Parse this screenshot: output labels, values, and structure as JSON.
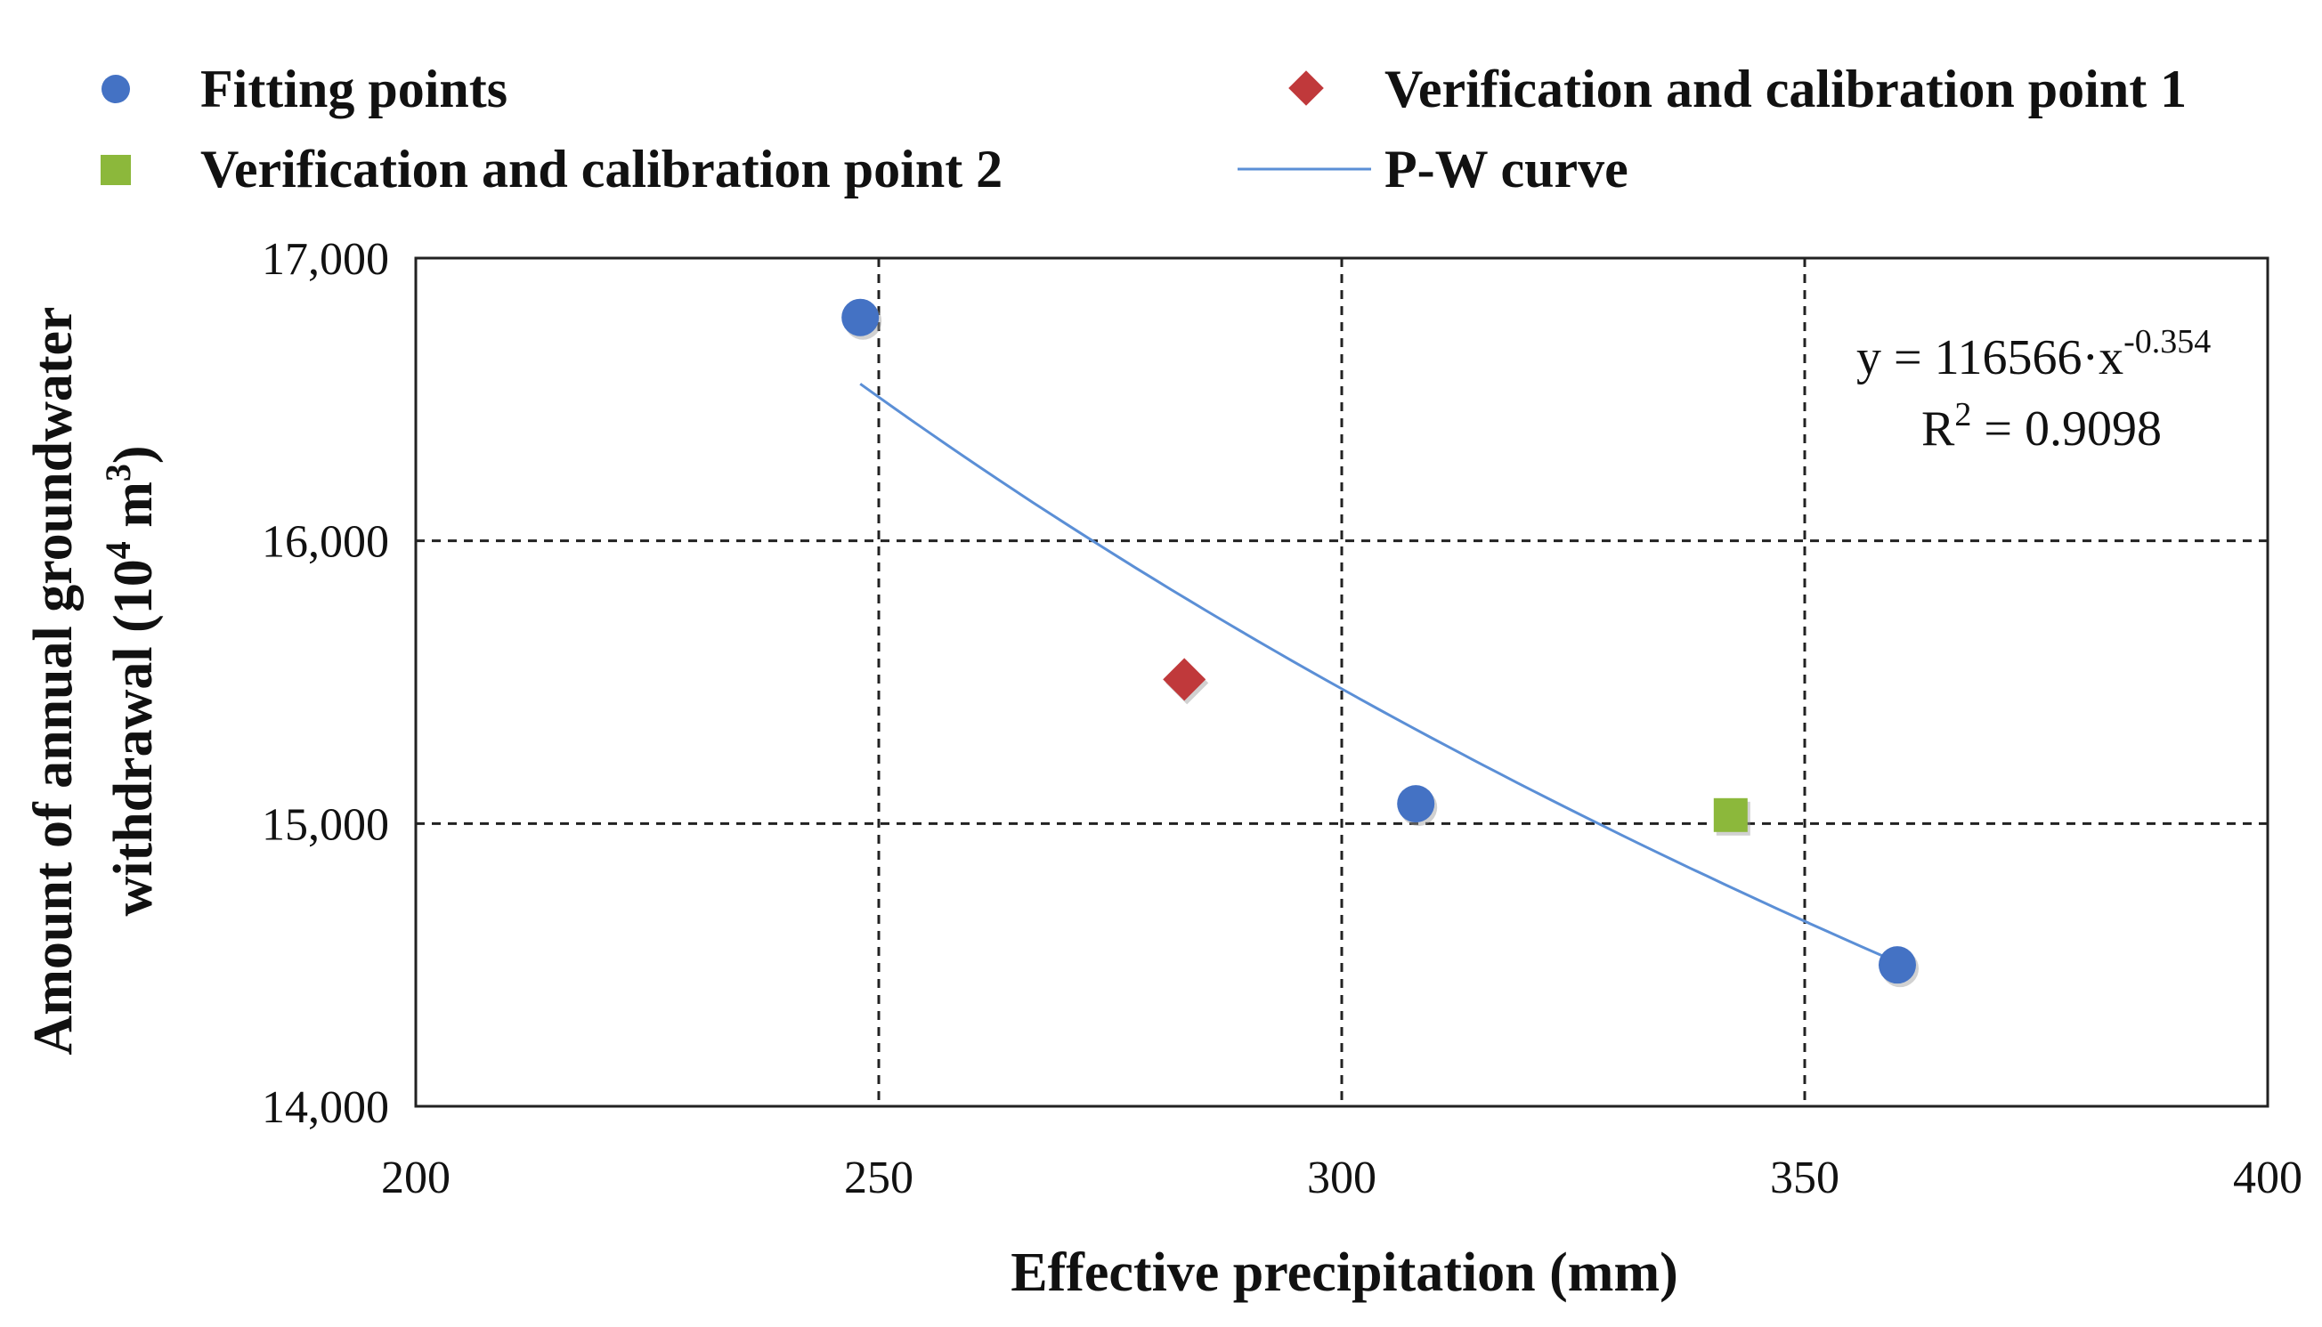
{
  "chart_data": {
    "type": "scatter",
    "title": "",
    "xlabel": "Effective precipitation (mm)",
    "ylabel_line1": "Amount of annual groundwater",
    "ylabel_line2_prefix": "withdrawal (10",
    "ylabel_line2_sup1": "4",
    "ylabel_line2_mid": " m",
    "ylabel_line2_sup2": "3",
    "ylabel_line2_suffix": ")",
    "xlim": [
      200,
      400
    ],
    "ylim": [
      14000,
      17000
    ],
    "x_ticks": [
      200,
      250,
      300,
      350,
      400
    ],
    "x_tick_labels": [
      "200",
      "250",
      "300",
      "350",
      "400"
    ],
    "y_ticks": [
      14000,
      15000,
      16000,
      17000
    ],
    "y_tick_labels": [
      "14,000",
      "15,000",
      "16,000",
      "17,000"
    ],
    "grid": "dashed",
    "legend_position": "top",
    "series": [
      {
        "name": "Fitting points",
        "marker": "circle",
        "color": "#4472c4",
        "x": [
          248,
          308,
          360
        ],
        "y": [
          16790,
          15070,
          14500
        ]
      },
      {
        "name": "Verification and calibration point 1",
        "marker": "diamond",
        "color": "#c0393b",
        "x": [
          283
        ],
        "y": [
          15510
        ]
      },
      {
        "name": "Verification and calibration point 2",
        "marker": "square",
        "color": "#8cb83b",
        "x": [
          342
        ],
        "y": [
          15030
        ]
      },
      {
        "name": "P-W curve",
        "marker": "line",
        "color": "#5b8fd6",
        "coefficient": 116566,
        "exponent": -0.354,
        "x_range": [
          248,
          360
        ]
      }
    ],
    "annotation": {
      "equation_prefix": "y = 116566·x",
      "equation_exponent": "-0.354",
      "r2_label": "R",
      "r2_sup": "2",
      "r2_value": " = 0.9098"
    }
  }
}
